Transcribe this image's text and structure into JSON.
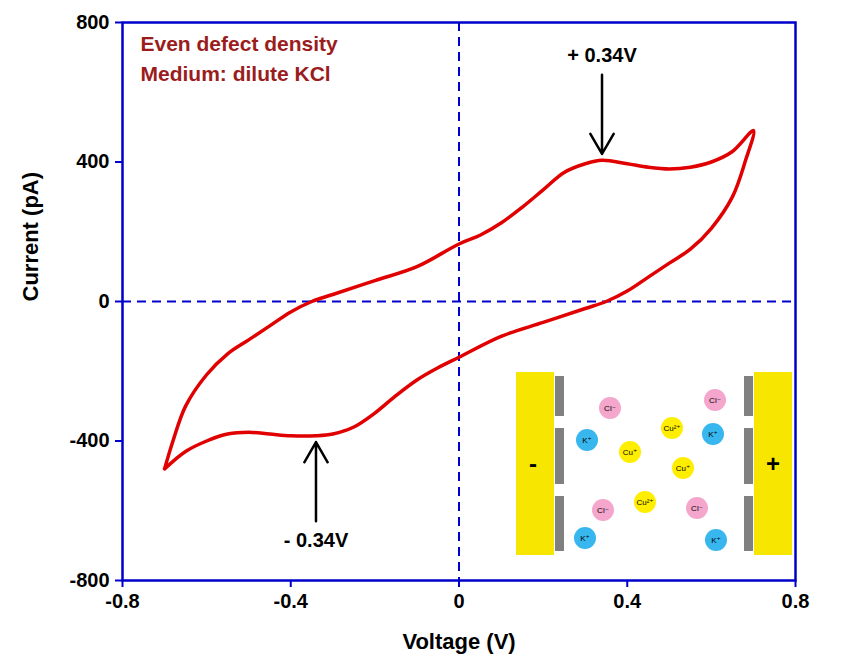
{
  "chart_data": {
    "type": "line",
    "x_label": "Voltage (V)",
    "y_label": "Current (pA)",
    "color": "#e00000",
    "line_style": "solid",
    "grid": false,
    "xlim": [
      -0.8,
      0.8
    ],
    "ylim": [
      -800,
      800
    ],
    "xticks": [
      -0.8,
      -0.4,
      0,
      0.4,
      0.8
    ],
    "yticks": [
      -800,
      -400,
      0,
      400,
      800
    ],
    "x": [
      -0.7,
      -0.68,
      -0.65,
      -0.6,
      -0.55,
      -0.5,
      -0.45,
      -0.4,
      -0.35,
      -0.3,
      -0.2,
      -0.1,
      0,
      0.05,
      0.1,
      0.15,
      0.2,
      0.25,
      0.3,
      0.34,
      0.4,
      0.45,
      0.5,
      0.55,
      0.6,
      0.65,
      0.7,
      0.68,
      0.65,
      0.6,
      0.55,
      0.5,
      0.45,
      0.4,
      0.35,
      0.3,
      0.2,
      0.1,
      0,
      -0.05,
      -0.1,
      -0.15,
      -0.2,
      -0.25,
      -0.3,
      -0.34,
      -0.4,
      -0.45,
      -0.5,
      -0.55,
      -0.6,
      -0.65,
      -0.7
    ],
    "values": [
      -480,
      -400,
      -300,
      -210,
      -150,
      -110,
      -70,
      -30,
      0,
      20,
      60,
      100,
      165,
      190,
      225,
      270,
      320,
      370,
      395,
      405,
      395,
      385,
      380,
      385,
      400,
      430,
      490,
      400,
      300,
      210,
      150,
      110,
      70,
      30,
      0,
      -20,
      -60,
      -100,
      -160,
      -190,
      -225,
      -270,
      -320,
      -360,
      -380,
      -385,
      -385,
      -380,
      -375,
      -380,
      -400,
      -430,
      -480
    ],
    "annotations": [
      {
        "text": "Even defect density"
      },
      {
        "text": "Medium: dilute KCl"
      },
      {
        "text": "+ 0.34V",
        "x": 0.34,
        "y": 405
      },
      {
        "text": "- 0.34V",
        "x": -0.34,
        "y": -385
      }
    ],
    "inset": {
      "left_electrode": "-",
      "right_electrode": "+",
      "ions": [
        {
          "label": "Cl⁻",
          "color": "#f4a6cc"
        },
        {
          "label": "Cl⁻",
          "color": "#f4a6cc"
        },
        {
          "label": "K⁺",
          "color": "#38b6ee"
        },
        {
          "label": "Cu⁺",
          "color": "#ffee00"
        },
        {
          "label": "Cu²⁺",
          "color": "#ffee00"
        },
        {
          "label": "K⁺",
          "color": "#38b6ee"
        },
        {
          "label": "Cu⁺",
          "color": "#ffee00"
        },
        {
          "label": "Cl⁻",
          "color": "#f4a6cc"
        },
        {
          "label": "Cu²⁺",
          "color": "#ffee00"
        },
        {
          "label": "Cl⁻",
          "color": "#f4a6cc"
        },
        {
          "label": "K⁺",
          "color": "#38b6ee"
        },
        {
          "label": "K⁺",
          "color": "#38b6ee"
        }
      ]
    }
  }
}
